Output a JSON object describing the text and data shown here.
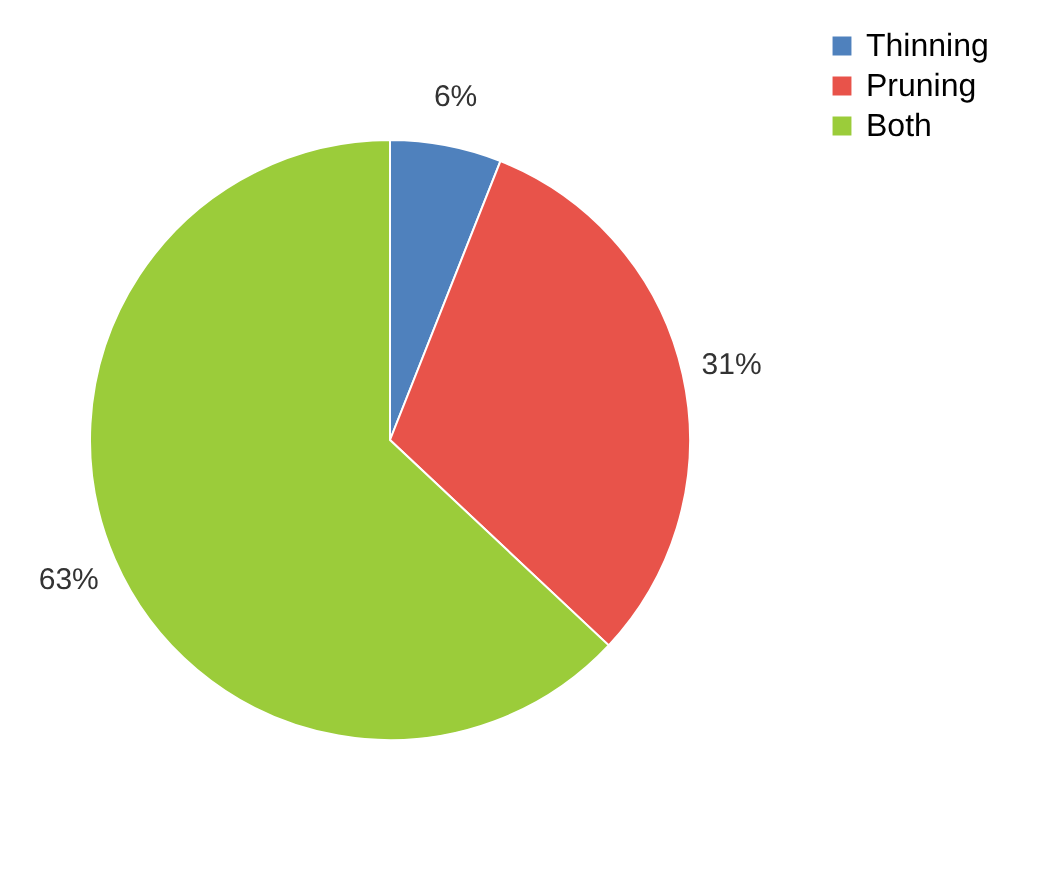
{
  "chart_data": {
    "type": "pie",
    "categories": [
      "Thinning",
      "Pruning",
      "Both"
    ],
    "values": [
      6,
      31,
      63
    ],
    "value_labels": [
      "6%",
      "31%",
      "63%"
    ],
    "colors": [
      "#4f81bd",
      "#e8534a",
      "#9bcc3a"
    ],
    "legend": "top right"
  }
}
